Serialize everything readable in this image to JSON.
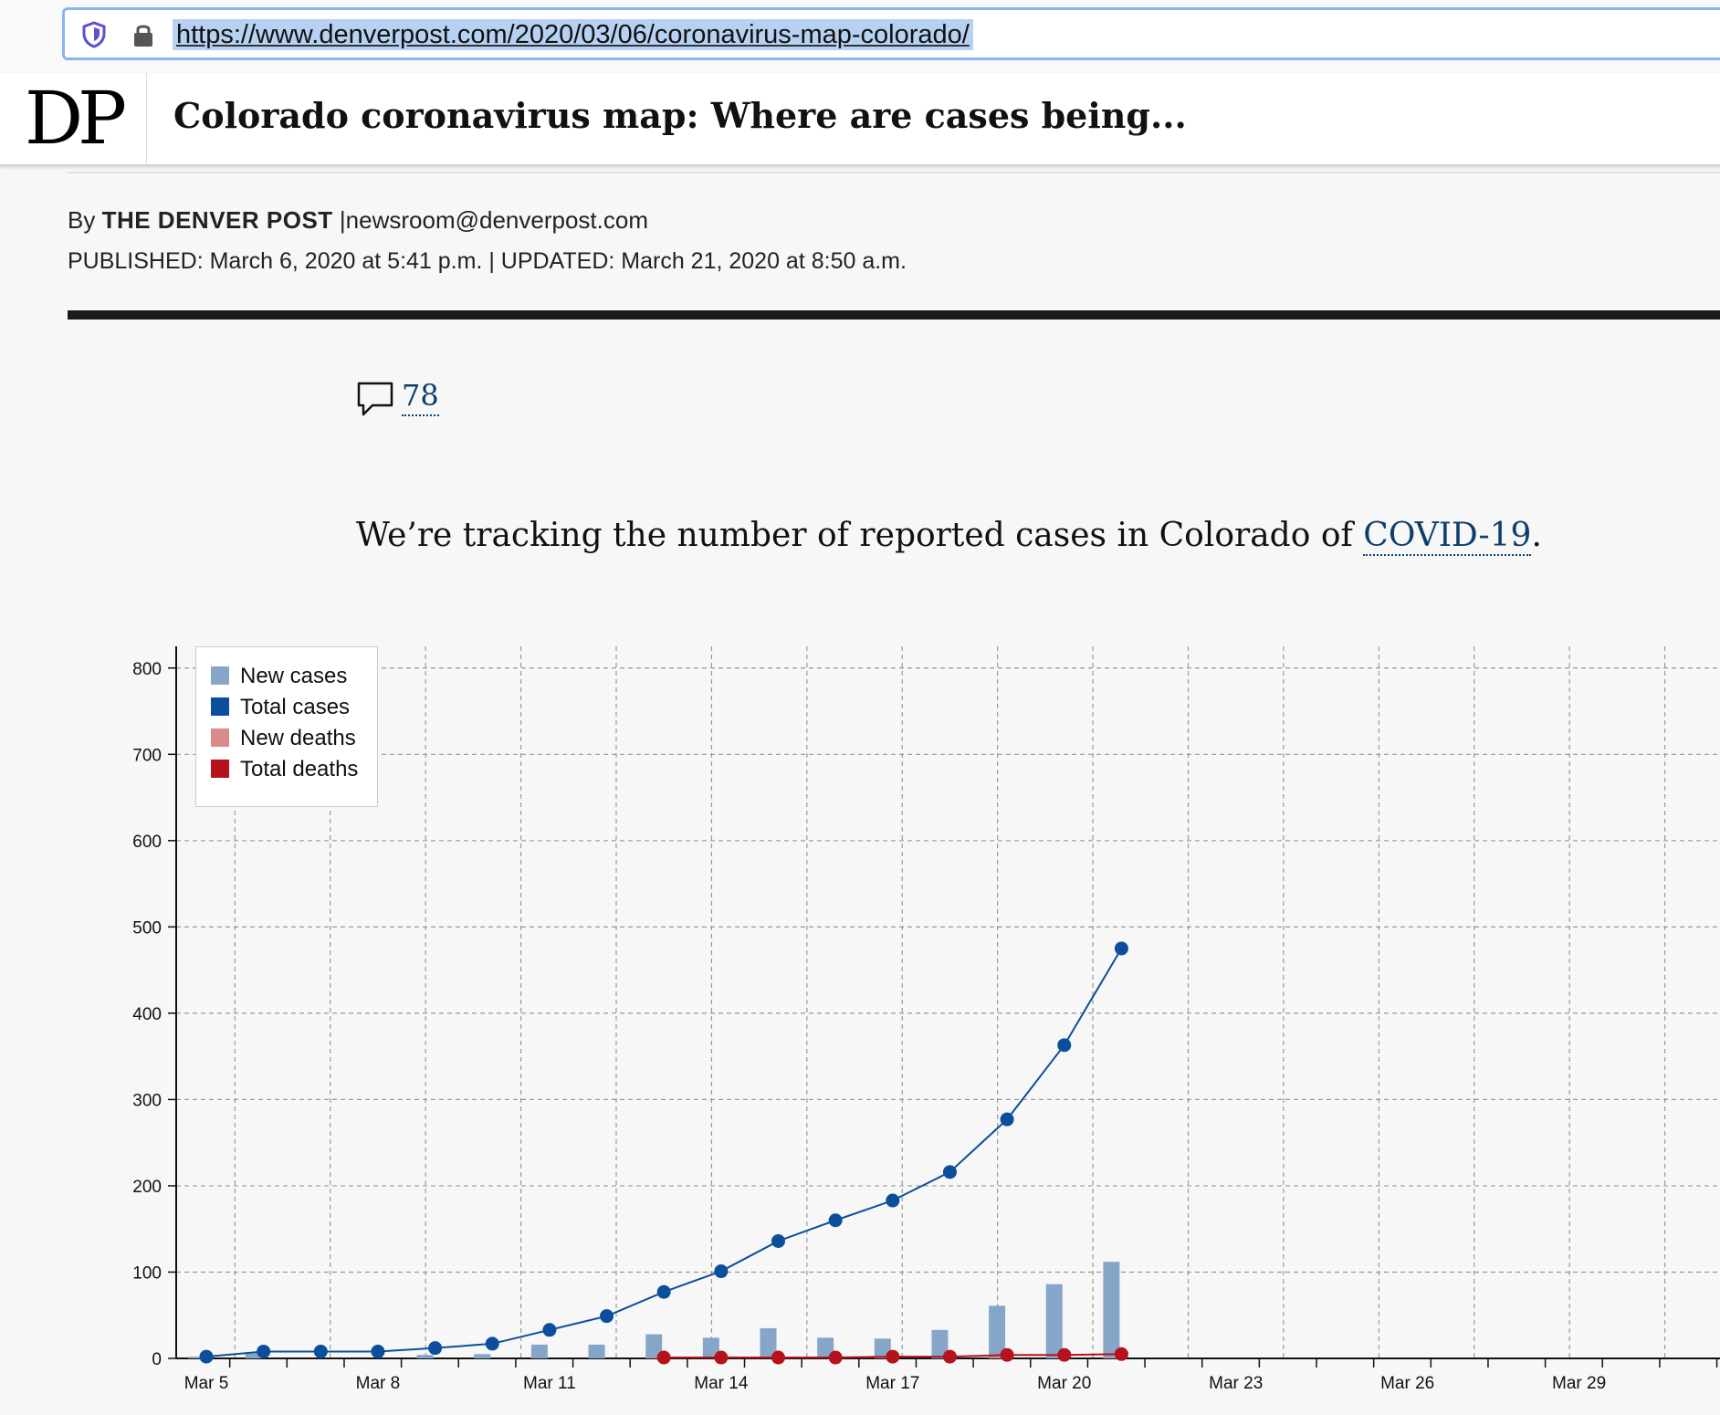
{
  "browser": {
    "url": "https://www.denverpost.com/2020/03/06/coronavirus-map-colorado/"
  },
  "site": {
    "logo": "DP",
    "headline": "Colorado coronavirus map: Where are cases being..."
  },
  "byline": {
    "prefix": "By",
    "author": "THE DENVER POST",
    "separator": "|",
    "email": "newsroom@denverpost.com",
    "dates": "PUBLISHED: March 6, 2020 at 5:41 p.m. | UPDATED: March 21, 2020 at 8:50 a.m."
  },
  "comments": {
    "count": "78"
  },
  "intro": {
    "text_before": "We’re tracking the number of reported cases in Colorado of ",
    "link": "COVID-19",
    "text_after": "."
  },
  "colors": {
    "new_cases": "#86a6c9",
    "total_cases": "#0b4f9c",
    "new_deaths": "#d98a8a",
    "total_deaths": "#b5121b",
    "grid": "#999999"
  },
  "chart_data": {
    "type": "line",
    "title": "",
    "xlabel": "",
    "ylabel": "",
    "ylim": [
      0,
      800
    ],
    "yticks": [
      "0",
      "100",
      "200",
      "300",
      "400",
      "500",
      "600",
      "700",
      "800"
    ],
    "x_tick_labels": [
      "Mar 5",
      "Mar 8",
      "Mar 11",
      "Mar 14",
      "Mar 17",
      "Mar 20",
      "Mar 23",
      "Mar 26",
      "Mar 29"
    ],
    "x_range_days": [
      5,
      31
    ],
    "legend": [
      "New cases",
      "Total cases",
      "New deaths",
      "Total deaths"
    ],
    "series": [
      {
        "name": "Total cases",
        "kind": "line",
        "days": [
          5,
          6,
          7,
          8,
          9,
          10,
          11,
          12,
          13,
          14,
          15,
          16,
          17,
          18,
          19,
          20,
          21
        ],
        "values": [
          2,
          8,
          8,
          8,
          12,
          17,
          33,
          49,
          77,
          101,
          136,
          160,
          183,
          216,
          277,
          363,
          475
        ]
      },
      {
        "name": "New cases",
        "kind": "bar",
        "days": [
          5,
          6,
          7,
          8,
          9,
          10,
          11,
          12,
          13,
          14,
          15,
          16,
          17,
          18,
          19,
          20,
          21
        ],
        "values": [
          2,
          6,
          0,
          0,
          4,
          5,
          16,
          16,
          28,
          24,
          35,
          24,
          23,
          33,
          61,
          86,
          112
        ]
      },
      {
        "name": "Total deaths",
        "kind": "line",
        "days": [
          13,
          14,
          15,
          16,
          17,
          18,
          19,
          20,
          21
        ],
        "values": [
          1,
          1,
          1,
          1,
          2,
          2,
          4,
          4,
          5
        ]
      },
      {
        "name": "New deaths",
        "kind": "bar",
        "days": [
          13,
          14,
          15,
          16,
          17,
          18,
          19,
          20,
          21
        ],
        "values": [
          1,
          0,
          0,
          0,
          1,
          0,
          2,
          0,
          1
        ]
      }
    ]
  }
}
